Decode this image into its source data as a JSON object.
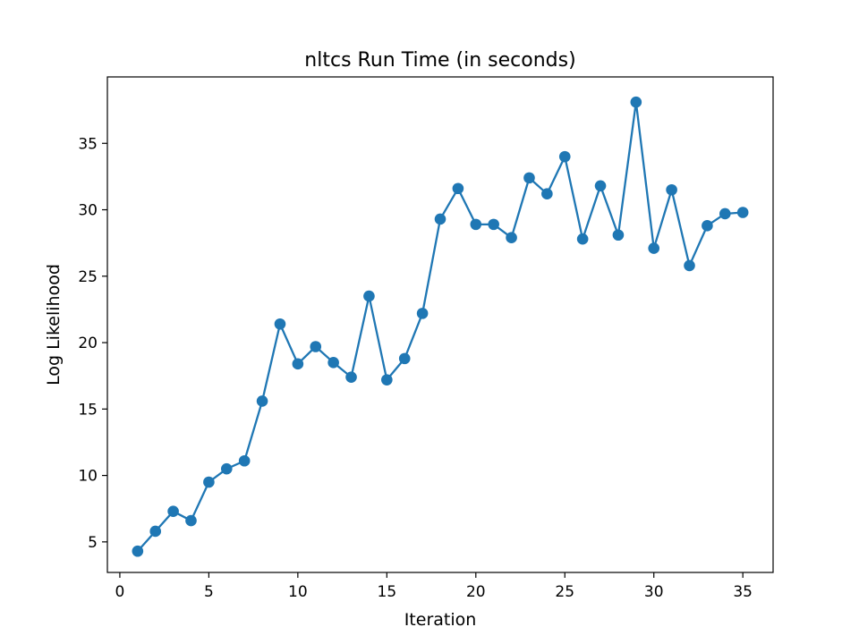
{
  "chart_data": {
    "type": "line",
    "title": "nltcs Run Time (in seconds)",
    "xlabel": "Iteration",
    "ylabel": "Log Likelihood",
    "xlim": [
      -0.7,
      36.7
    ],
    "ylim": [
      2.7,
      40.0
    ],
    "x_ticks": [
      0,
      5,
      10,
      15,
      20,
      25,
      30,
      35
    ],
    "y_ticks": [
      5,
      10,
      15,
      20,
      25,
      30,
      35
    ],
    "grid": false,
    "legend": "none",
    "series": [
      {
        "color": "#1f77b4",
        "marker": "circle",
        "x": [
          1,
          2,
          3,
          4,
          5,
          6,
          7,
          8,
          9,
          10,
          11,
          12,
          13,
          14,
          15,
          16,
          17,
          18,
          19,
          20,
          21,
          22,
          23,
          24,
          25,
          26,
          27,
          28,
          29,
          30,
          31,
          32,
          33,
          34,
          35
        ],
        "y": [
          4.3,
          5.8,
          7.3,
          6.6,
          9.5,
          10.5,
          11.1,
          15.6,
          21.4,
          18.4,
          19.7,
          18.5,
          17.4,
          23.5,
          17.2,
          18.8,
          22.2,
          29.3,
          31.6,
          28.9,
          28.9,
          27.9,
          32.4,
          31.2,
          34.0,
          27.8,
          31.8,
          28.1,
          38.1,
          27.1,
          31.5,
          25.8,
          28.8,
          29.7,
          29.8
        ]
      }
    ]
  }
}
